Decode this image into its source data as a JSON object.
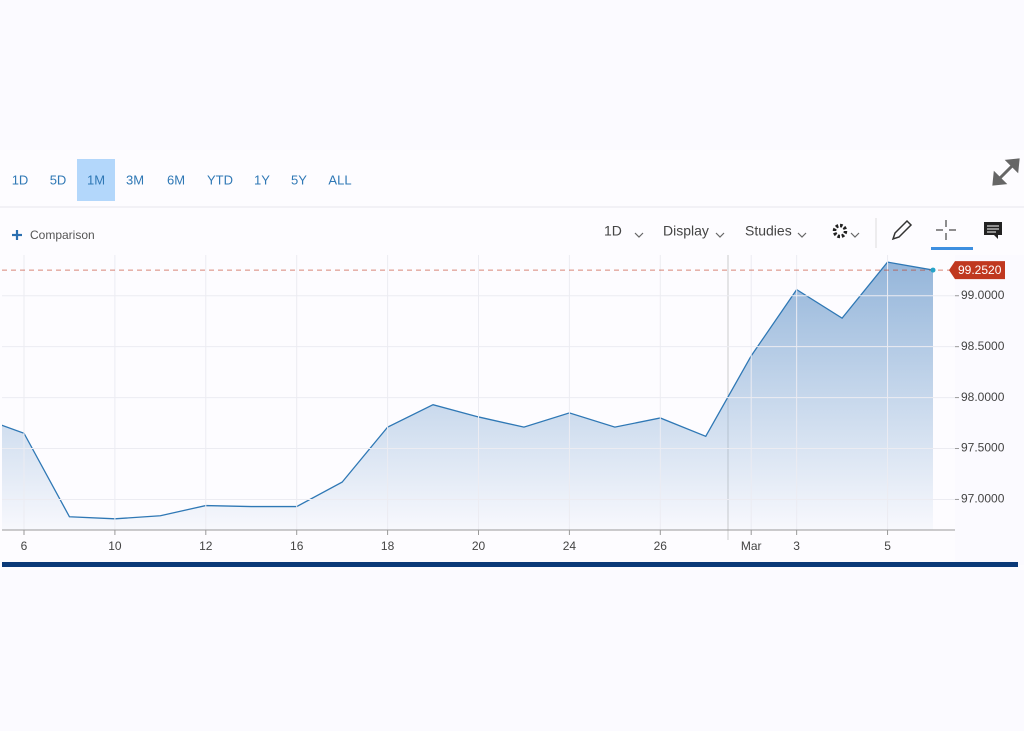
{
  "toolbar": {
    "ranges": [
      "1D",
      "5D",
      "1M",
      "3M",
      "6M",
      "YTD",
      "1Y",
      "5Y",
      "ALL"
    ],
    "active_range": "1M",
    "comparison": "Comparison",
    "interval": "1D",
    "display": "Display",
    "studies": "Studies"
  },
  "chart_data": {
    "type": "line",
    "categories": [
      null,
      "6",
      null,
      "10",
      null,
      "12",
      null,
      "16",
      null,
      "18",
      null,
      "20",
      null,
      "24",
      null,
      "26",
      null,
      "Mar",
      "3",
      null,
      "5",
      null
    ],
    "values": [
      97.81,
      97.65,
      96.83,
      96.81,
      96.84,
      96.94,
      96.93,
      96.93,
      97.17,
      97.71,
      97.93,
      97.81,
      97.71,
      97.85,
      97.71,
      97.8,
      97.62,
      98.41,
      99.06,
      98.78,
      99.33,
      99.252
    ],
    "value_labels": [
      null,
      null,
      null,
      null,
      null,
      null,
      null,
      null,
      null,
      null,
      null,
      null,
      null,
      null,
      null,
      null,
      null,
      null,
      null,
      null,
      null,
      "99.2520"
    ],
    "color": "#2f78b5",
    "area_color": "#8fb2d8",
    "last_price_color": "#c0381f",
    "ylim": [
      96.7,
      99.4
    ],
    "yticks": [
      {
        "value": 97,
        "label": "97.0000"
      },
      {
        "value": 97.5,
        "label": "97.5000"
      },
      {
        "value": 98,
        "label": "98.0000"
      },
      {
        "value": 98.5,
        "label": "98.5000"
      },
      {
        "value": 99,
        "label": "99.0000"
      }
    ],
    "grid": true
  }
}
